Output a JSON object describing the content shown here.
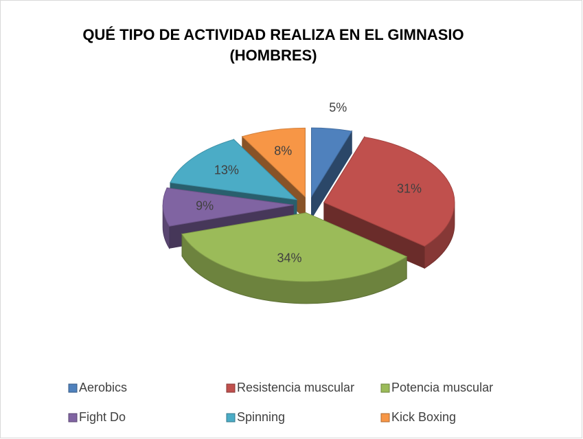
{
  "chart_data": {
    "type": "pie",
    "title": "QUÉ TIPO DE ACTIVIDAD REALIZA EN EL GIMNASIO  (HOMBRES)",
    "categories": [
      "Aerobics",
      "Resistencia muscular",
      "Potencia muscular",
      "Fight Do",
      "Spinning",
      "Kick Boxing"
    ],
    "values": [
      5,
      31,
      34,
      9,
      13,
      8
    ],
    "value_labels": [
      "5%",
      "31%",
      "34%",
      "9%",
      "13%",
      "8%"
    ],
    "colors": [
      "#4f81bd",
      "#c0504d",
      "#9bbb59",
      "#8064a2",
      "#4bacc6",
      "#f79646"
    ],
    "legend": "bottom"
  }
}
